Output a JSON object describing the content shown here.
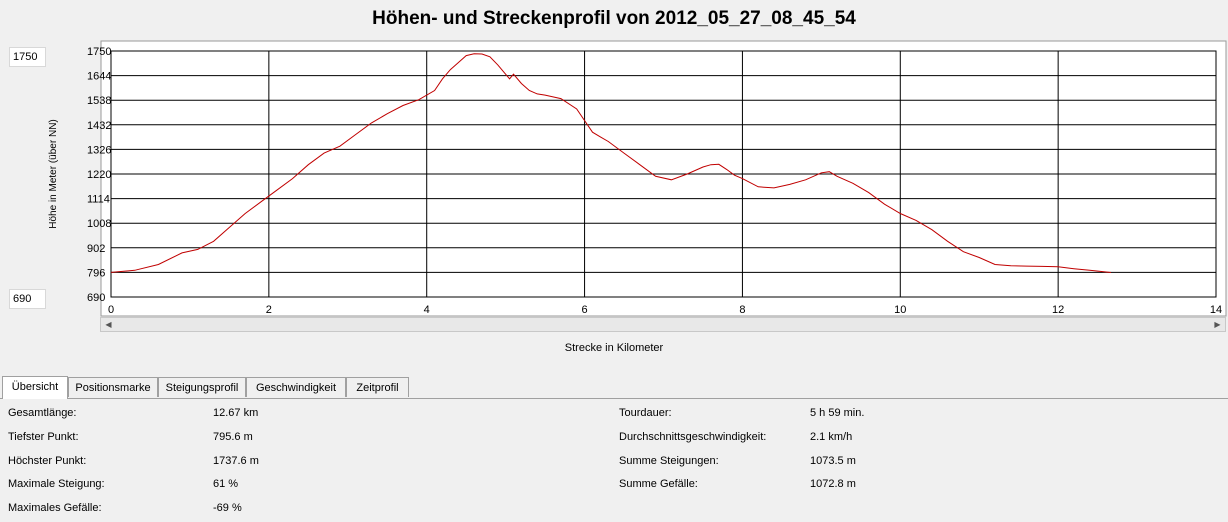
{
  "title": "Höhen- und Streckenprofil von 2012_05_27_08_45_54",
  "side": {
    "max": "1750",
    "min": "690"
  },
  "chart_data": {
    "type": "line",
    "title": "Höhen- und Streckenprofil von 2012_05_27_08_45_54",
    "xlabel": "Strecke in Kilometer",
    "ylabel": "Höhe in Meter (über NN)",
    "xlim": [
      0,
      14
    ],
    "ylim": [
      690,
      1750
    ],
    "xticks": [
      "0",
      "2",
      "4",
      "6",
      "8",
      "10",
      "12",
      "14"
    ],
    "yticks": [
      "1750",
      "1644",
      "1538",
      "1432",
      "1326",
      "1220",
      "1114",
      "1008",
      "902",
      "796",
      "690"
    ],
    "grid": true,
    "color": "#c00000",
    "series": [
      {
        "x": [
          0,
          0.3,
          0.6,
          0.9,
          1.1,
          1.3,
          1.5,
          1.7,
          1.9,
          2.1,
          2.3,
          2.5,
          2.7,
          2.9,
          3.1,
          3.3,
          3.5,
          3.7,
          3.9,
          4.1,
          4.2,
          4.3,
          4.4,
          4.5,
          4.6,
          4.7,
          4.8,
          4.9,
          5.0,
          5.05,
          5.1,
          5.2,
          5.3,
          5.4,
          5.5,
          5.7,
          5.9,
          6.0,
          6.1,
          6.2,
          6.3,
          6.5,
          6.7,
          6.9,
          7.1,
          7.3,
          7.5,
          7.6,
          7.7,
          7.8,
          7.9,
          8.0,
          8.2,
          8.4,
          8.6,
          8.8,
          9.0,
          9.1,
          9.2,
          9.4,
          9.6,
          9.8,
          10.0,
          10.2,
          10.4,
          10.6,
          10.8,
          11.0,
          11.2,
          11.4,
          11.6,
          11.8,
          12.0,
          12.2,
          12.4,
          12.67
        ],
        "y": [
          796,
          805,
          830,
          880,
          895,
          930,
          990,
          1050,
          1100,
          1150,
          1200,
          1260,
          1310,
          1340,
          1390,
          1440,
          1480,
          1515,
          1540,
          1580,
          1630,
          1670,
          1700,
          1730,
          1738,
          1737,
          1725,
          1690,
          1650,
          1630,
          1650,
          1610,
          1580,
          1565,
          1560,
          1545,
          1500,
          1450,
          1400,
          1380,
          1360,
          1310,
          1260,
          1210,
          1195,
          1220,
          1250,
          1260,
          1262,
          1240,
          1215,
          1200,
          1165,
          1160,
          1175,
          1195,
          1225,
          1230,
          1210,
          1180,
          1140,
          1090,
          1050,
          1020,
          980,
          930,
          885,
          860,
          830,
          825,
          823,
          822,
          820,
          812,
          805,
          795.6
        ]
      }
    ]
  },
  "tabs": [
    "Übersicht",
    "Positionsmarke",
    "Steigungsprofil",
    "Geschwindigkeit",
    "Zeitprofil"
  ],
  "stats_left": [
    {
      "label": "Gesamtlänge:",
      "value": "12.67 km"
    },
    {
      "label": "Tiefster Punkt:",
      "value": "795.6 m"
    },
    {
      "label": "Höchster Punkt:",
      "value": "1737.6 m"
    },
    {
      "label": "Maximale Steigung:",
      "value": "61 %"
    },
    {
      "label": "Maximales Gefälle:",
      "value": "-69 %"
    }
  ],
  "stats_right": [
    {
      "label": "Tourdauer:",
      "value": "5 h 59 min."
    },
    {
      "label": "Durchschnittsgeschwindigkeit:",
      "value": "2.1 km/h"
    },
    {
      "label": "Summe Steigungen:",
      "value": "1073.5 m"
    },
    {
      "label": "Summe Gefälle:",
      "value": "1072.8 m"
    }
  ]
}
